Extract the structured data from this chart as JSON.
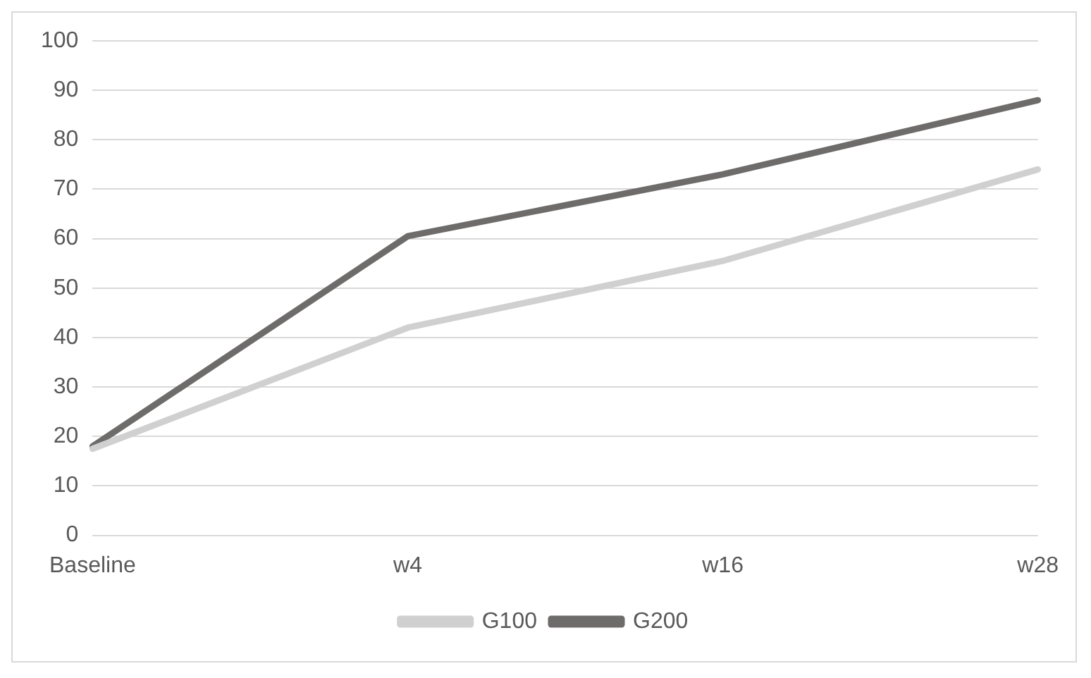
{
  "chart_data": {
    "type": "line",
    "categories": [
      "Baseline",
      "w4",
      "w16",
      "w28"
    ],
    "series": [
      {
        "name": "G100",
        "color": "#d0d0d0",
        "values": [
          17.5,
          42,
          55.5,
          74
        ]
      },
      {
        "name": "G200",
        "color": "#6e6b6b",
        "values": [
          18,
          60.5,
          73,
          88
        ]
      }
    ],
    "ylim": [
      0,
      100
    ],
    "yticks": [
      0,
      10,
      20,
      30,
      40,
      50,
      60,
      70,
      80,
      90,
      100
    ],
    "grid": "y",
    "legend": "bottom",
    "marker": "none",
    "line_style": "solid"
  }
}
